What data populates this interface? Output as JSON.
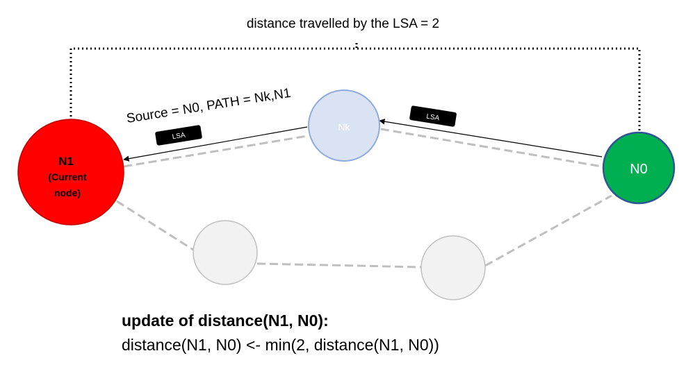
{
  "caption": "distance travelled by the LSA = 2",
  "path_label": "Source = N0, PATH = Nk,N1",
  "nodes": {
    "n1": {
      "label": "N1",
      "sublabel_line1": "(Current",
      "sublabel_line2": "node)",
      "fill": "#ff0000",
      "stroke": "#c00000"
    },
    "nk": {
      "label": "Nk",
      "fill": "#dae3f3",
      "stroke": "#8faadc"
    },
    "n0": {
      "label": "N0",
      "fill": "#00b050",
      "stroke": "#2f5597"
    },
    "intermediate": {
      "fill": "#f2f2f2",
      "stroke": "#bfbfbf"
    }
  },
  "lsa_tags": [
    "LSA",
    "LSA"
  ],
  "update": {
    "heading": "update of distance(N1, N0):",
    "formula": "distance(N1, N0) <- min(2, distance(N1, N0))"
  },
  "colors": {
    "dashed_link": "#bfbfbf",
    "arrow": "#000000",
    "tag": "#000000"
  }
}
